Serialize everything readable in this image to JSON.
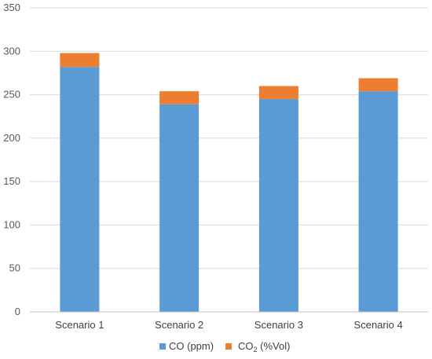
{
  "chart_data": {
    "type": "bar",
    "stacked": true,
    "title": "",
    "xlabel": "",
    "ylabel": "",
    "categories": [
      "Scenario 1",
      "Scenario 2",
      "Scenario 3",
      "Scenario 4"
    ],
    "series": [
      {
        "name": "CO (ppm)",
        "color": "#5b9bd5",
        "values": [
          282,
          239,
          245,
          254
        ]
      },
      {
        "name": "CO",
        "subscript": "2",
        "suffix": " (%Vol)",
        "color": "#ed7d31",
        "values": [
          16,
          15,
          15,
          15
        ]
      }
    ],
    "ylim": [
      0,
      350
    ],
    "yticks": [
      "0",
      "50",
      "100",
      "150",
      "200",
      "250",
      "300",
      "350"
    ],
    "grid": true,
    "legend": "bottom"
  }
}
